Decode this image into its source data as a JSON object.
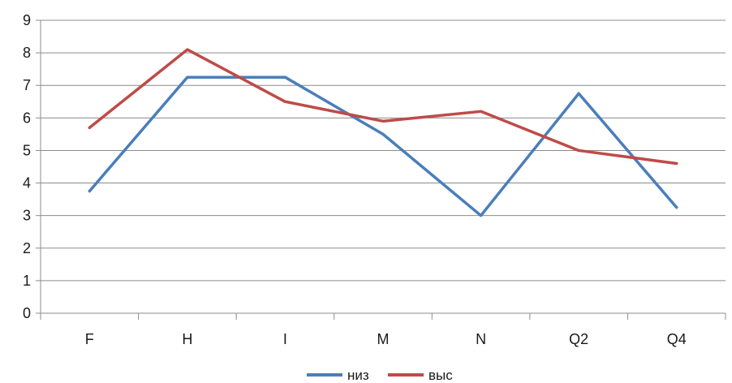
{
  "chart_data": {
    "type": "line",
    "categories": [
      "F",
      "H",
      "I",
      "M",
      "N",
      "Q2",
      "Q4"
    ],
    "series": [
      {
        "name": "низ",
        "color": "#4A7EBB",
        "values": [
          3.75,
          7.25,
          7.25,
          5.5,
          3.0,
          6.75,
          3.25
        ]
      },
      {
        "name": "выс",
        "color": "#BE4B48",
        "values": [
          5.7,
          8.1,
          6.5,
          5.9,
          6.2,
          5.0,
          4.6
        ]
      }
    ],
    "ylim": [
      0,
      9
    ],
    "yticks": [
      0,
      1,
      2,
      3,
      4,
      5,
      6,
      7,
      8,
      9
    ],
    "grid": true,
    "legend_position": "bottom",
    "title": "",
    "xlabel": "",
    "ylabel": ""
  }
}
